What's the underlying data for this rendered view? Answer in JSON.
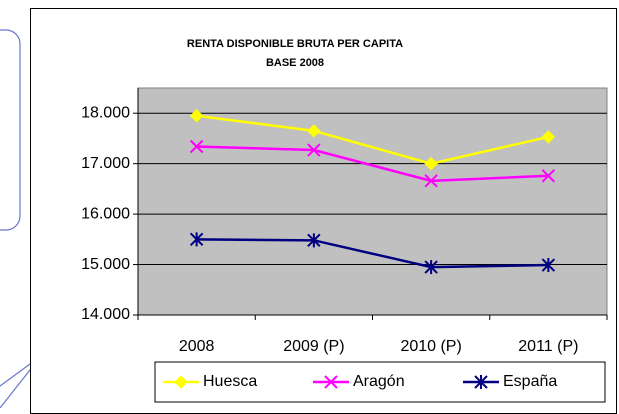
{
  "chart_data": {
    "type": "line",
    "title": "RENTA DISPONIBLE BRUTA PER CAPITA",
    "subtitle": "BASE 2008",
    "categories": [
      "2008",
      "2009 (P)",
      "2010 (P)",
      "2011 (P)"
    ],
    "series": [
      {
        "name": "Huesca",
        "color": "#ffff00",
        "marker": "diamond",
        "values": [
          17950,
          17650,
          17000,
          17530
        ]
      },
      {
        "name": "Aragón",
        "color": "#ff00ff",
        "marker": "x",
        "values": [
          17340,
          17270,
          16660,
          16760
        ]
      },
      {
        "name": "España",
        "color": "#000080",
        "marker": "star",
        "values": [
          15500,
          15480,
          14950,
          14990
        ]
      }
    ],
    "ylim": [
      14000,
      18500
    ],
    "yticks": [
      {
        "value": 14000,
        "label": "14.000"
      },
      {
        "value": 15000,
        "label": "15.000"
      },
      {
        "value": 16000,
        "label": "16.000"
      },
      {
        "value": 17000,
        "label": "17.000"
      },
      {
        "value": 18000,
        "label": "18.000"
      }
    ],
    "grid": true,
    "legend": "bottom"
  }
}
